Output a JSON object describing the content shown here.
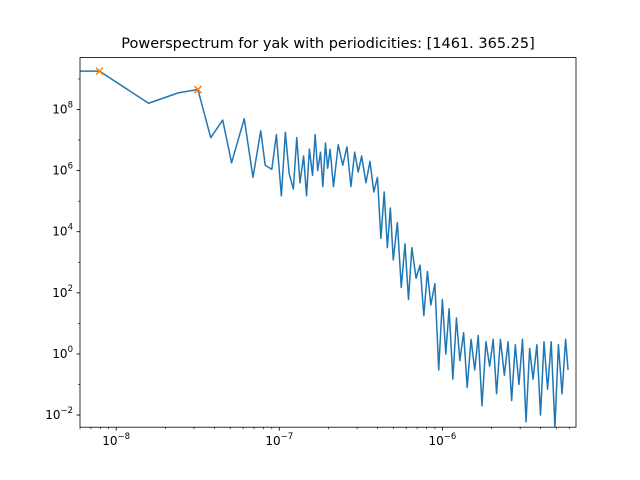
{
  "chart_data": {
    "type": "line",
    "title": "Powerspectrum for yak with periodicities: [1461.    365.25]",
    "xlabel": "",
    "ylabel": "",
    "xscale": "log",
    "yscale": "log",
    "xlim": [
      6e-09,
      6.6e-06
    ],
    "ylim": [
      0.004,
      5000000000.0
    ],
    "grid": false,
    "x_tick_labels": [
      {
        "value": 1e-08,
        "base": "10",
        "exp": "−8"
      },
      {
        "value": 1e-07,
        "base": "10",
        "exp": "−7"
      },
      {
        "value": 1e-06,
        "base": "10",
        "exp": "−6"
      }
    ],
    "y_tick_labels": [
      {
        "value": 100000000.0,
        "base": "10",
        "exp": "8"
      },
      {
        "value": 1000000.0,
        "base": "10",
        "exp": "6"
      },
      {
        "value": 10000.0,
        "base": "10",
        "exp": "4"
      },
      {
        "value": 100.0,
        "base": "10",
        "exp": "2"
      },
      {
        "value": 1,
        "base": "10",
        "exp": "0"
      },
      {
        "value": 0.01,
        "base": "10",
        "exp": "−2"
      }
    ],
    "series": [
      {
        "color": "#1f77b4",
        "x": [
          6e-09,
          7.9e-09,
          1.58e-08,
          2.4e-08,
          3.17e-08,
          3.8e-08,
          4.5e-08,
          5.1e-08,
          6.1e-08,
          6.9e-08,
          7.7e-08,
          8.2e-08,
          9e-08,
          9.6e-08,
          1.03e-07,
          1.09e-07,
          1.15e-07,
          1.22e-07,
          1.28e-07,
          1.34e-07,
          1.41e-07,
          1.47e-07,
          1.53e-07,
          1.6e-07,
          1.66e-07,
          1.72e-07,
          1.79e-07,
          1.85e-07,
          1.92e-07,
          1.98e-07,
          2.05e-07,
          2.15e-07,
          2.3e-07,
          2.45e-07,
          2.6e-07,
          2.75e-07,
          2.9e-07,
          3.05e-07,
          3.2e-07,
          3.4e-07,
          3.6e-07,
          3.8e-07,
          4e-07,
          4.2e-07,
          4.4e-07,
          4.6e-07,
          4.8e-07,
          5e-07,
          5.3e-07,
          5.6e-07,
          5.9e-07,
          6.2e-07,
          6.5e-07,
          6.9e-07,
          7.3e-07,
          7.7e-07,
          8.1e-07,
          8.5e-07,
          9e-07,
          9.5e-07,
          1e-06,
          1.05e-06,
          1.1e-06,
          1.16e-06,
          1.22e-06,
          1.28e-06,
          1.35e-06,
          1.42e-06,
          1.5e-06,
          1.58e-06,
          1.66e-06,
          1.75e-06,
          1.85e-06,
          1.95e-06,
          2.05e-06,
          2.15e-06,
          2.27e-06,
          2.4e-06,
          2.53e-06,
          2.66e-06,
          2.8e-06,
          2.95e-06,
          3.1e-06,
          3.26e-06,
          3.43e-06,
          3.6e-06,
          3.8e-06,
          4e-06,
          4.2e-06,
          4.42e-06,
          4.65e-06,
          4.9e-06,
          5.15e-06,
          5.42e-06,
          5.7e-06,
          5.9e-06
        ],
        "y": [
          1800000000.0,
          1800000000.0,
          160000000.0,
          350000000.0,
          450000000.0,
          12000000.0,
          45000000.0,
          1800000.0,
          50000000.0,
          600000.0,
          20000000.0,
          1500000.0,
          1100000.0,
          15000000.0,
          150000.0,
          18000000.0,
          800000.0,
          250000.0,
          12000000.0,
          400000.0,
          3000000.0,
          150000.0,
          5000000.0,
          700000.0,
          15000000.0,
          1000000.0,
          4000000.0,
          300000.0,
          8000000.0,
          1200000.0,
          5000000.0,
          300000.0,
          7000000.0,
          1500000.0,
          6000000.0,
          300000.0,
          4000000.0,
          900000.0,
          3000000.0,
          400000.0,
          2000000.0,
          200000.0,
          600000.0,
          6000.0,
          200000.0,
          3000.0,
          60000.0,
          1200.0,
          20000.0,
          150,
          4000.0,
          60,
          3000.0,
          300,
          800,
          18,
          500,
          40,
          200,
          0.3,
          60,
          1.0,
          30,
          0.15,
          15,
          0.6,
          5,
          0.08,
          3,
          0.3,
          4,
          0.02,
          2.5,
          0.4,
          3,
          0.05,
          3,
          0.2,
          2.5,
          0.03,
          2,
          0.1,
          3,
          0.006,
          1.5,
          0.15,
          2,
          0.01,
          2.5,
          0.07,
          2.5,
          0.004,
          2,
          0.05,
          3,
          0.3
        ],
        "markers": {
          "color": "#ff7f0e",
          "shape": "x",
          "x": [
            7.9e-09,
            3.17e-08
          ],
          "y": [
            1800000000.0,
            450000000.0
          ]
        }
      }
    ]
  }
}
